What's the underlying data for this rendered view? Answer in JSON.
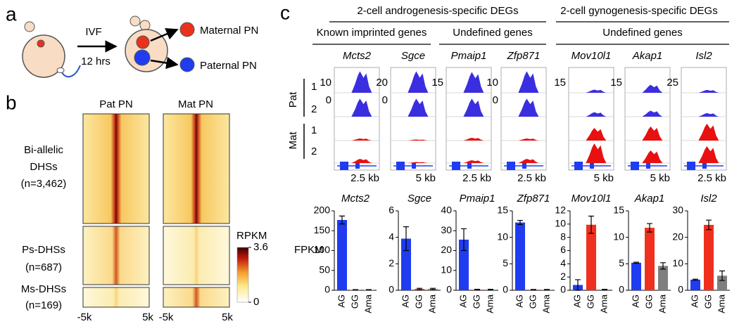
{
  "panel_a": {
    "label": "a",
    "steps": [
      "IVF",
      "12 hrs"
    ],
    "outcomes": [
      "Maternal PN",
      "Paternal PN"
    ]
  },
  "panel_b": {
    "label": "b",
    "columns": [
      "Pat PN",
      "Mat PN"
    ],
    "groups": [
      {
        "lines": [
          "Bi-allelic",
          "DHSs",
          "(n=3,462)"
        ]
      },
      {
        "lines": [
          "Ps-DHSs",
          "(n=687)"
        ]
      },
      {
        "lines": [
          "Ms-DHSs",
          "(n=169)"
        ]
      }
    ],
    "xticks": [
      "-5k",
      "5k"
    ],
    "colorbar": {
      "label": "RPKM",
      "lim": [
        0,
        3.6
      ],
      "ticks": [
        3.6,
        0
      ]
    }
  },
  "panel_c": {
    "label": "c",
    "groups": [
      {
        "title": "2-cell androgenesis-specific DEGs",
        "subgroups": [
          "Known imprinted genes",
          "Undefined genes"
        ]
      },
      {
        "title": "2-cell gynogenesis-specific DEGs",
        "subgroups": [
          "Undefined genes"
        ]
      }
    ],
    "rows": [
      {
        "name": "Pat",
        "replicates": [
          "1",
          "2"
        ]
      },
      {
        "name": "Mat",
        "replicates": [
          "1",
          "2"
        ]
      }
    ],
    "tracks": [
      {
        "gene": "Mcts2",
        "ylim": [
          0,
          10
        ],
        "yticks": [
          10,
          0
        ],
        "peaks": [
          9,
          8,
          1,
          2
        ],
        "scale_bar": "2.5 kb"
      },
      {
        "gene": "Sgce",
        "ylim": [
          0,
          20
        ],
        "yticks": [
          20,
          0
        ],
        "peaks": [
          18,
          16,
          1,
          1
        ],
        "scale_bar": "5 kb"
      },
      {
        "gene": "Pmaip1",
        "ylim": [
          0,
          15
        ],
        "yticks": [
          15
        ],
        "peaks": [
          13,
          12,
          2,
          2
        ],
        "scale_bar": "2.5 kb"
      },
      {
        "gene": "Zfp871",
        "ylim": [
          0,
          10
        ],
        "yticks": [
          10,
          0
        ],
        "peaks": [
          9,
          8,
          1,
          2
        ],
        "scale_bar": "2.5 kb"
      },
      {
        "gene": "Mov10l1",
        "ylim": [
          0,
          15
        ],
        "yticks": [
          15
        ],
        "peaks": [
          2,
          3,
          9,
          14
        ],
        "scale_bar": "5 kb"
      },
      {
        "gene": "Akap1",
        "ylim": [
          0,
          15
        ],
        "yticks": [
          15
        ],
        "peaks": [
          5,
          4,
          10,
          9
        ],
        "scale_bar": "5 kb"
      },
      {
        "gene": "Isl2",
        "ylim": [
          0,
          25
        ],
        "yticks": [
          25
        ],
        "peaks": [
          3,
          4,
          20,
          20
        ],
        "scale_bar": "2.5 kb"
      }
    ]
  },
  "chart_data": [
    {
      "type": "bar",
      "title": "Mcts2",
      "ylabel": "FPKM",
      "categories": [
        "AG",
        "GG",
        "Ama"
      ],
      "values": [
        177,
        1,
        1
      ],
      "errors": [
        10,
        0.5,
        0.5
      ],
      "colors": [
        "#1f3cf0",
        "#f0301e",
        "#7f7f7f"
      ],
      "ylim": [
        0,
        200
      ],
      "yticks": [
        0,
        50,
        100,
        150,
        200
      ]
    },
    {
      "type": "bar",
      "title": "Sgce",
      "categories": [
        "AG",
        "GG",
        "Ama"
      ],
      "values": [
        3.9,
        0.1,
        0.1
      ],
      "errors": [
        0.9,
        0.05,
        0.05
      ],
      "colors": [
        "#1f3cf0",
        "#f0301e",
        "#7f7f7f"
      ],
      "ylim": [
        0,
        6
      ],
      "yticks": [
        0,
        2,
        4,
        6
      ]
    },
    {
      "type": "bar",
      "title": "Pmaip1",
      "categories": [
        "AG",
        "GG",
        "Ama"
      ],
      "values": [
        25.5,
        0.3,
        0.3
      ],
      "errors": [
        5.5,
        0.2,
        0.2
      ],
      "colors": [
        "#1f3cf0",
        "#f0301e",
        "#7f7f7f"
      ],
      "ylim": [
        0,
        40
      ],
      "yticks": [
        0,
        10,
        20,
        30,
        40
      ]
    },
    {
      "type": "bar",
      "title": "Zfp871",
      "categories": [
        "AG",
        "GG",
        "Ama"
      ],
      "values": [
        12.8,
        0.1,
        0.1
      ],
      "errors": [
        0.4,
        0.05,
        0.05
      ],
      "colors": [
        "#1f3cf0",
        "#f0301e",
        "#7f7f7f"
      ],
      "ylim": [
        0,
        15
      ],
      "yticks": [
        0,
        5,
        10,
        15
      ]
    },
    {
      "type": "bar",
      "title": "Mov10l1",
      "categories": [
        "AG",
        "GG",
        "Ama"
      ],
      "values": [
        0.8,
        9.9,
        0.1
      ],
      "errors": [
        0.8,
        1.3,
        0.05
      ],
      "colors": [
        "#1f3cf0",
        "#f0301e",
        "#7f7f7f"
      ],
      "ylim": [
        0,
        12
      ],
      "yticks": [
        0,
        2,
        4,
        6,
        8,
        10,
        12
      ]
    },
    {
      "type": "bar",
      "title": "Akap1",
      "categories": [
        "AG",
        "GG",
        "Ama"
      ],
      "values": [
        5.2,
        11.8,
        4.6
      ],
      "errors": [
        0.1,
        0.8,
        0.6
      ],
      "colors": [
        "#1f3cf0",
        "#f0301e",
        "#7f7f7f"
      ],
      "ylim": [
        0,
        15
      ],
      "yticks": [
        0,
        5,
        10,
        15
      ]
    },
    {
      "type": "bar",
      "title": "Isl2",
      "categories": [
        "AG",
        "GG",
        "Ama"
      ],
      "values": [
        4,
        24.7,
        5.5
      ],
      "errors": [
        0.2,
        1.8,
        1.8
      ],
      "colors": [
        "#1f3cf0",
        "#f0301e",
        "#7f7f7f"
      ],
      "ylim": [
        0,
        30
      ],
      "yticks": [
        0,
        10,
        20,
        30
      ]
    }
  ]
}
